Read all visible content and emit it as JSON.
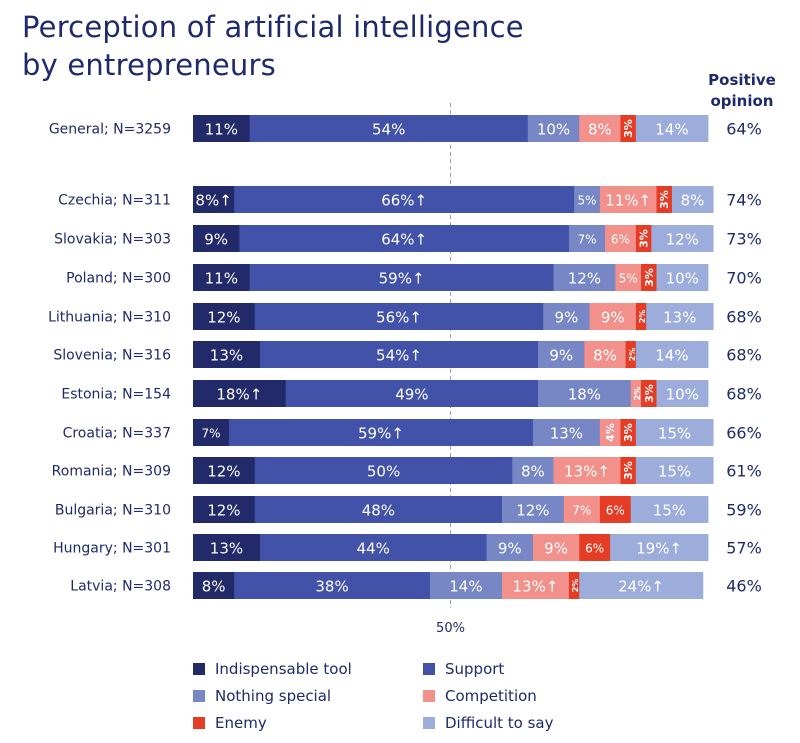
{
  "title_line1": "Perception of artificial intelligence",
  "title_line2": "by entrepreneurs",
  "positive_header_line1": "Positive",
  "positive_header_line2": "opinion",
  "colors": {
    "Indispensable tool": "#222a6a",
    "Support": "#4152a8",
    "Nothing special": "#7786c4",
    "Competition": "#f2908b",
    "Enemy": "#e53c25",
    "Difficult to say": "#9caddb"
  },
  "chart_data": {
    "type": "bar",
    "orientation": "horizontal",
    "stacked": true,
    "reference_line": {
      "value": 50,
      "label": "50%"
    },
    "categories": [
      "General; N=3259",
      "Czechia; N=311",
      "Slovakia; N=303",
      "Poland; N=300",
      "Lithuania; N=310",
      "Slovenia; N=316",
      "Estonia; N=154",
      "Croatia; N=337",
      "Romania; N=309",
      "Bulgaria; N=310",
      "Hungary; N=301",
      "Latvia; N=308"
    ],
    "series": [
      {
        "name": "Indispensable tool",
        "values": [
          11,
          8,
          9,
          11,
          12,
          13,
          18,
          7,
          12,
          12,
          13,
          8
        ],
        "up": [
          false,
          true,
          false,
          false,
          false,
          false,
          true,
          false,
          false,
          false,
          false,
          false
        ]
      },
      {
        "name": "Support",
        "values": [
          54,
          66,
          64,
          59,
          56,
          54,
          49,
          59,
          50,
          48,
          44,
          38
        ],
        "up": [
          false,
          true,
          true,
          true,
          true,
          true,
          false,
          true,
          false,
          false,
          false,
          false
        ]
      },
      {
        "name": "Nothing special",
        "values": [
          10,
          5,
          7,
          12,
          9,
          9,
          18,
          13,
          8,
          12,
          9,
          14
        ],
        "up": [
          false,
          false,
          false,
          false,
          false,
          false,
          false,
          false,
          false,
          false,
          false,
          false
        ]
      },
      {
        "name": "Competition",
        "values": [
          8,
          11,
          6,
          5,
          9,
          8,
          2,
          4,
          13,
          7,
          9,
          13
        ],
        "up": [
          false,
          true,
          false,
          false,
          false,
          false,
          false,
          false,
          true,
          false,
          false,
          true
        ]
      },
      {
        "name": "Enemy",
        "values": [
          3,
          3,
          3,
          3,
          2,
          2,
          3,
          3,
          3,
          6,
          6,
          2
        ],
        "up": [
          false,
          false,
          false,
          false,
          false,
          false,
          false,
          false,
          false,
          false,
          false,
          false
        ]
      },
      {
        "name": "Difficult to say",
        "values": [
          14,
          8,
          12,
          10,
          13,
          14,
          10,
          15,
          15,
          15,
          19,
          24
        ],
        "up": [
          false,
          false,
          false,
          false,
          false,
          false,
          false,
          false,
          false,
          false,
          true,
          true
        ]
      }
    ],
    "positive_opinion": [
      "64%",
      "74%",
      "73%",
      "70%",
      "68%",
      "68%",
      "68%",
      "66%",
      "61%",
      "59%",
      "57%",
      "46%"
    ],
    "legend": [
      "Indispensable tool",
      "Support",
      "Nothing special",
      "Competition",
      "Enemy",
      "Difficult to say"
    ],
    "legend_placement": "bottom",
    "unit": "%"
  }
}
